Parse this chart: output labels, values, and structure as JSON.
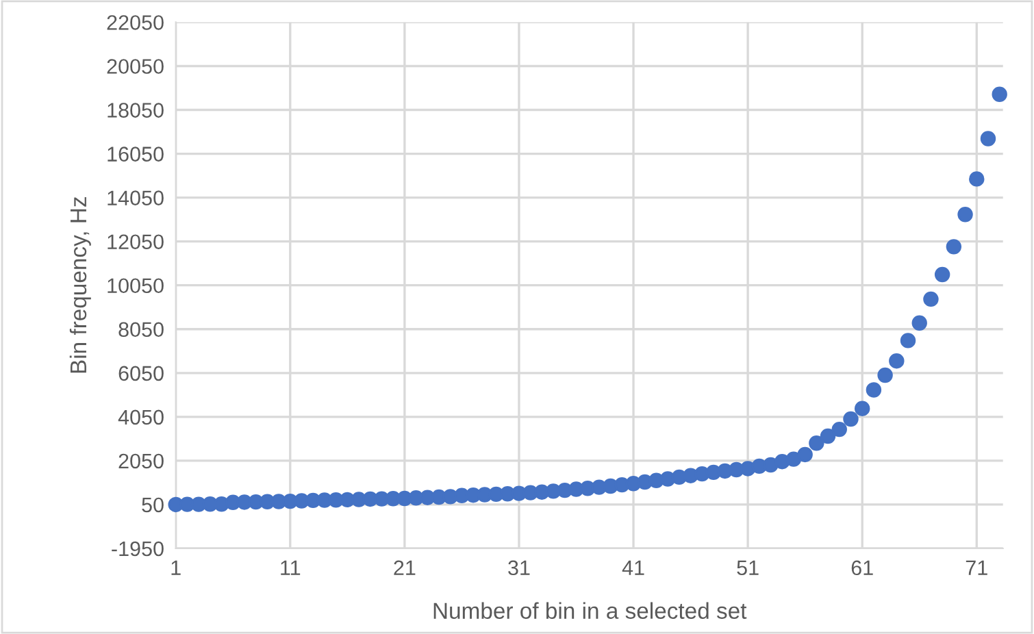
{
  "chart_data": {
    "type": "scatter",
    "xlabel": "Number of bin in a selected set",
    "ylabel": "Bin frequency, Hz",
    "x": [
      1,
      2,
      3,
      4,
      5,
      6,
      7,
      8,
      9,
      10,
      11,
      12,
      13,
      14,
      15,
      16,
      17,
      18,
      19,
      20,
      21,
      22,
      23,
      24,
      25,
      26,
      27,
      28,
      29,
      30,
      31,
      32,
      33,
      34,
      35,
      36,
      37,
      38,
      39,
      40,
      41,
      42,
      43,
      44,
      45,
      46,
      47,
      48,
      49,
      50,
      51,
      52,
      53,
      54,
      55,
      56,
      57,
      58,
      59,
      60,
      61,
      62,
      63,
      64,
      65,
      66,
      67,
      68,
      69,
      70,
      71,
      72,
      73
    ],
    "series": [
      {
        "color": "#4472c4",
        "values": [
          50,
          60,
          60,
          70,
          70,
          150,
          160,
          170,
          180,
          190,
          200,
          220,
          240,
          250,
          260,
          270,
          280,
          300,
          310,
          320,
          330,
          350,
          370,
          390,
          410,
          460,
          480,
          500,
          520,
          540,
          560,
          590,
          620,
          660,
          700,
          750,
          790,
          840,
          890,
          950,
          1010,
          1080,
          1150,
          1220,
          1300,
          1370,
          1450,
          1520,
          1580,
          1640,
          1690,
          1800,
          1860,
          2010,
          2120,
          2330,
          2850,
          3170,
          3480,
          3950,
          4430,
          5280,
          5950,
          6600,
          7530,
          8330,
          9420,
          10540,
          11810,
          13280,
          14900,
          16740,
          18760
        ]
      }
    ],
    "xlim": [
      1,
      73.3
    ],
    "xticks": [
      1,
      11,
      21,
      31,
      41,
      51,
      61,
      71
    ],
    "ylim": [
      -1950,
      22050
    ],
    "yticks": [
      -1950,
      50,
      2050,
      4050,
      6050,
      8050,
      10050,
      12050,
      14050,
      16050,
      18050,
      20050,
      22050
    ],
    "grid": true,
    "marker": "circle"
  }
}
